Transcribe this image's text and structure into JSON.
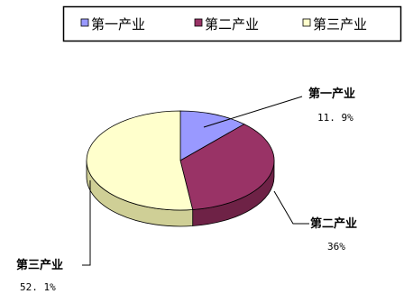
{
  "chart_data": {
    "type": "pie",
    "title": "",
    "legend_position": "top",
    "categories": [
      "第一产业",
      "第二产业",
      "第三产业"
    ],
    "values": [
      11.9,
      36,
      52.1
    ],
    "value_labels": [
      "11. 9%",
      "36%",
      "52. 1%"
    ],
    "colors": {
      "top": [
        "#9999ff",
        "#993366",
        "#ffffcc"
      ],
      "side": [
        "#6c6cc4",
        "#6e2246",
        "#cfcf96"
      ]
    }
  }
}
